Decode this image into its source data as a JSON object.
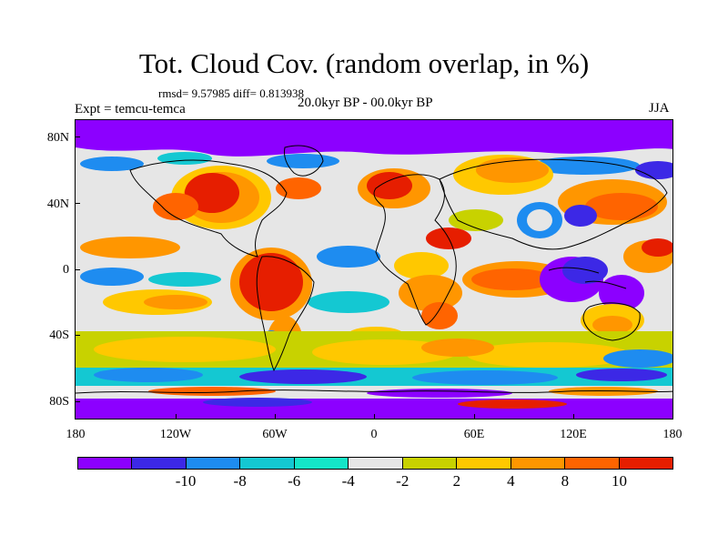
{
  "title": "Tot. Cloud Cov. (random overlap, in %)",
  "stats": "rmsd= 9.57985 diff= 0.813938",
  "experiment": "Expt = temcu-temca",
  "period": "20.0kyr BP - 00.0kyr BP",
  "season": "JJA",
  "lat_labels": [
    "80N",
    "40N",
    "0",
    "40S",
    "80S"
  ],
  "lon_labels": [
    "180",
    "120W",
    "60W",
    "0",
    "60E",
    "120E",
    "180"
  ],
  "colorbar": {
    "colors": [
      "#8c00ff",
      "#3c28e6",
      "#1e8cf0",
      "#14c8d2",
      "#14e6c8",
      "#e6e6e6",
      "#c8d200",
      "#ffc800",
      "#ff9600",
      "#ff6400",
      "#e61e00"
    ],
    "labels": [
      "-10",
      "-8",
      "-6",
      "-4",
      "-2",
      "2",
      "4",
      "8",
      "10"
    ]
  }
}
